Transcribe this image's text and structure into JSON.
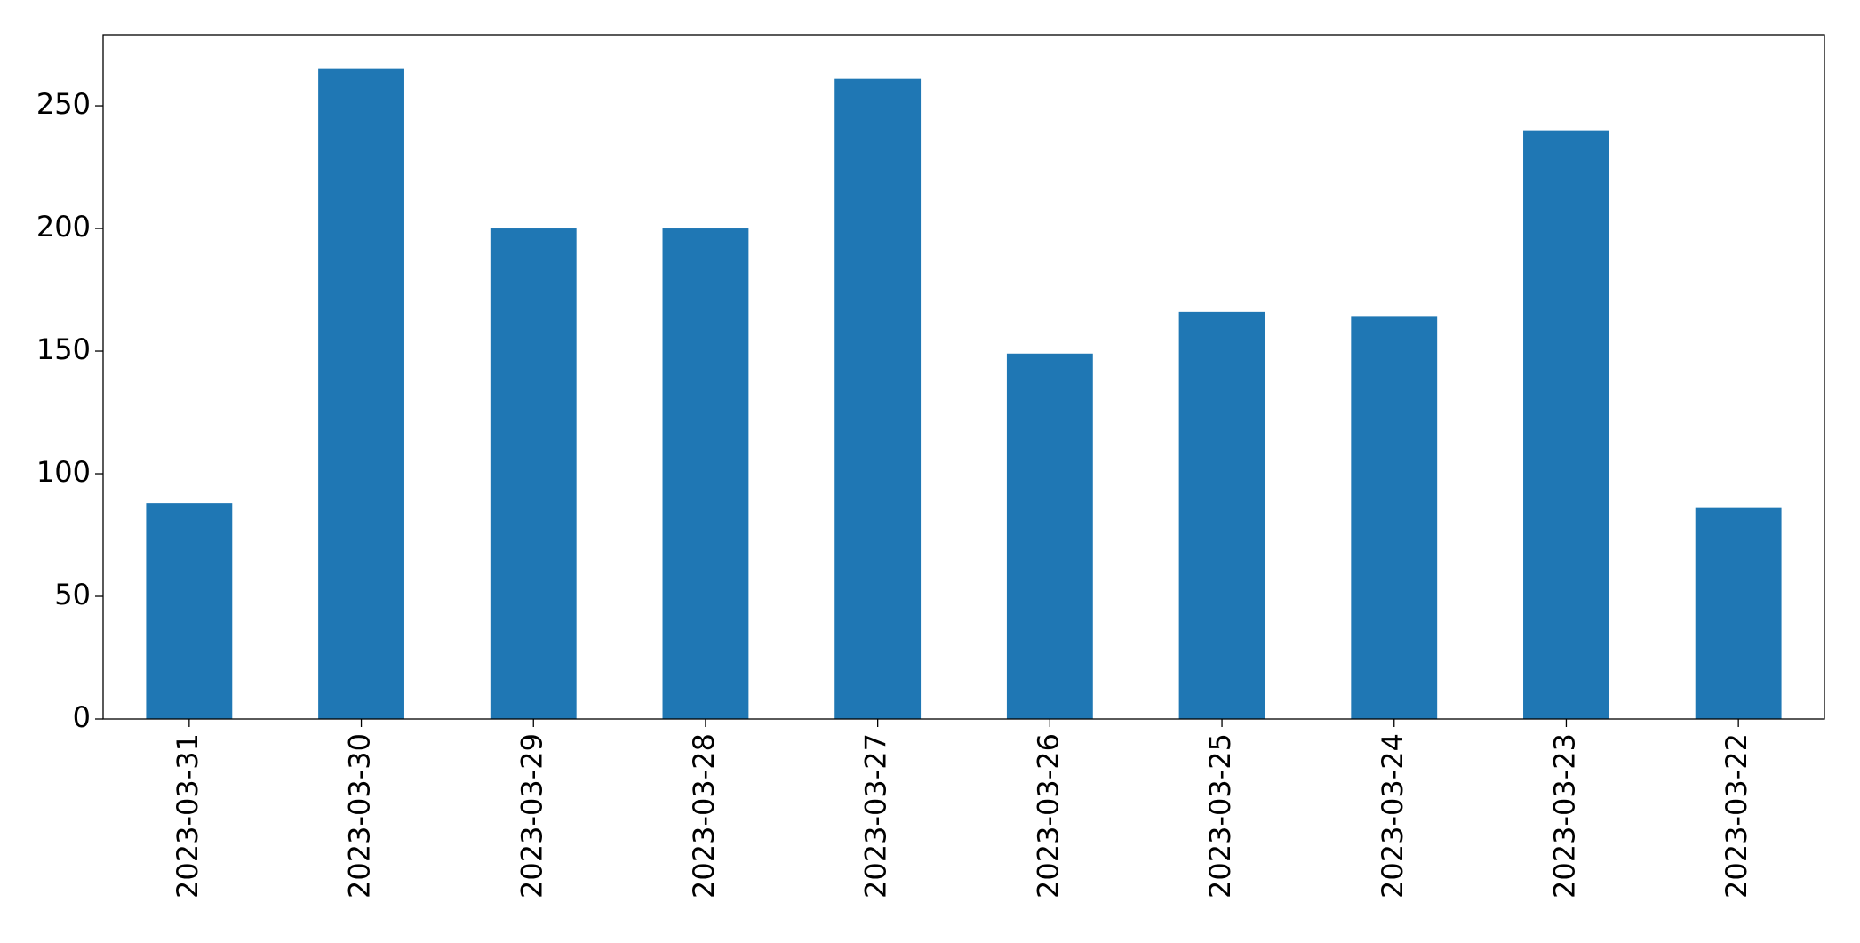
{
  "chart_data": {
    "type": "bar",
    "categories": [
      "2023-03-31",
      "2023-03-30",
      "2023-03-29",
      "2023-03-28",
      "2023-03-27",
      "2023-03-26",
      "2023-03-25",
      "2023-03-24",
      "2023-03-23",
      "2023-03-22"
    ],
    "values": [
      88,
      265,
      200,
      200,
      261,
      149,
      166,
      164,
      240,
      86
    ],
    "color": "#1f77b4",
    "ylim": [
      0,
      279
    ],
    "yticks": [
      0,
      50,
      100,
      150,
      200,
      250
    ],
    "grid": false
  }
}
